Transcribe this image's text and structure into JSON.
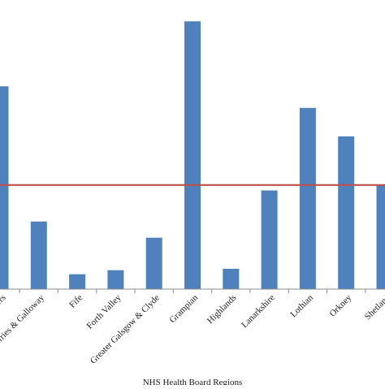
{
  "chart_data": {
    "type": "bar",
    "categories": [
      "Borders",
      "Dumfries & Galloway",
      "Fife",
      "Forth Valley",
      "Greater Galsgow & Clyde",
      "Grampian",
      "Highlands",
      "Lanarkshire",
      "Lothian",
      "Orkney",
      "Shetland"
    ],
    "values": [
      75,
      25,
      5.5,
      7,
      19,
      99,
      7.5,
      36.5,
      67,
      56.5,
      38.5
    ],
    "reference_line": {
      "value": 38.5
    },
    "ylim": [
      0,
      104
    ],
    "xlabel": "NHS  Health Board Regions",
    "ylabel": "",
    "title": "",
    "grid": false,
    "legend": "none",
    "colors": {
      "bar": "#4f81bd",
      "reference_line": "#c0504d",
      "axis": "#8c8c8c",
      "text": "#1a1a1a"
    }
  }
}
